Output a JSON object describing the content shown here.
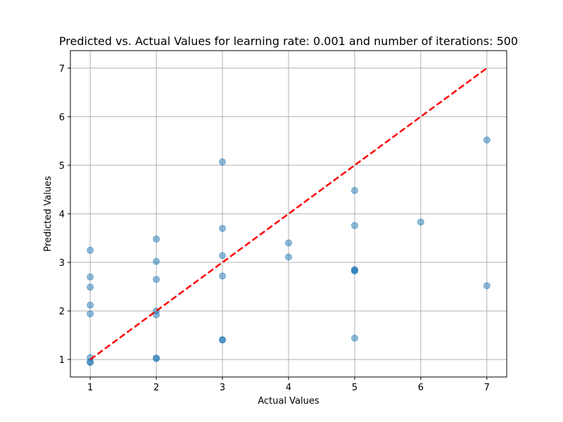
{
  "chart_data": {
    "type": "scatter",
    "title": "Predicted vs. Actual Values for learning rate: 0.001 and number of iterations: 500",
    "xlabel": "Actual Values",
    "ylabel": "Predicted Values",
    "xlim": [
      0.7,
      7.3
    ],
    "ylim": [
      0.64,
      7.36
    ],
    "xticks": [
      "1",
      "2",
      "3",
      "4",
      "5",
      "6",
      "7"
    ],
    "yticks": [
      "1",
      "2",
      "3",
      "4",
      "5",
      "6",
      "7"
    ],
    "grid": true,
    "points": {
      "color": "#1f77b4",
      "x": [
        1,
        1,
        1,
        1,
        1,
        1,
        1,
        1,
        2,
        2,
        2,
        2,
        2,
        2,
        2,
        3,
        3,
        3,
        3,
        3,
        3,
        4,
        4,
        5,
        5,
        5,
        5,
        5,
        5,
        6,
        7,
        7
      ],
      "y": [
        3.25,
        2.7,
        2.49,
        2.12,
        1.94,
        1.04,
        0.95,
        0.94,
        3.48,
        3.02,
        2.65,
        2.0,
        1.92,
        1.03,
        1.02,
        5.07,
        3.7,
        3.14,
        2.72,
        1.41,
        1.4,
        3.4,
        3.11,
        4.48,
        3.76,
        2.85,
        2.82,
        1.44,
        2.84,
        3.83,
        5.52,
        2.52
      ]
    },
    "reference_line": {
      "x": [
        1,
        7
      ],
      "y": [
        1,
        7
      ],
      "color": "#ff0000",
      "style": "dashed"
    }
  }
}
